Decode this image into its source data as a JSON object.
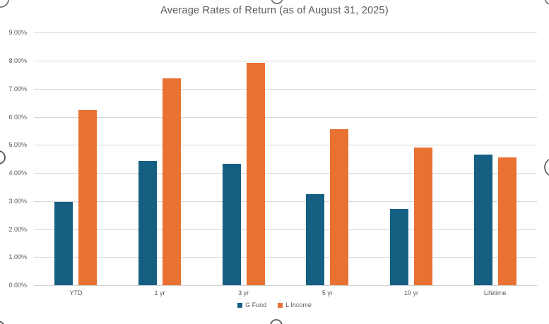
{
  "chart_data": {
    "type": "bar",
    "title": "Average Rates of Return (as of August 31, 2025)",
    "categories": [
      "YTD",
      "1 yr",
      "3 yr",
      "5 yr",
      "10 yr",
      "Lifetime"
    ],
    "series": [
      {
        "name": "G Fund",
        "color": "#156082",
        "values": [
          2.97,
          4.44,
          4.33,
          3.25,
          2.71,
          4.66
        ]
      },
      {
        "name": "L Income",
        "color": "#E97132",
        "values": [
          6.24,
          7.36,
          7.92,
          5.57,
          4.9,
          4.56
        ]
      }
    ],
    "ylabel": "",
    "xlabel": "",
    "ylim": [
      0,
      9
    ],
    "ytick_labels": [
      "0.00%",
      "1.00%",
      "2.00%",
      "3.00%",
      "4.00%",
      "5.00%",
      "6.00%",
      "7.00%",
      "8.00%",
      "9.00%"
    ],
    "grid": true,
    "legend_position": "bottom",
    "colors": {
      "title_text": "#595959",
      "axis_text": "#595959",
      "gridline": "#d9d9d9",
      "background": "#ffffff"
    }
  }
}
